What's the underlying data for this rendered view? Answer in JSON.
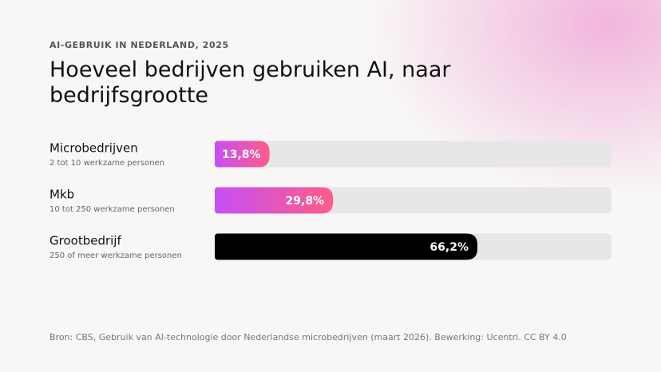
{
  "chart_data": {
    "type": "bar",
    "kicker": "AI-GEBRUIK IN NEDERLAND, 2025",
    "title": "Hoeveel bedrijven gebruiken AI, naar bedrijfsgrootte",
    "categories": [
      "Microbedrijven",
      "Mkb",
      "Grootbedrijf"
    ],
    "category_subtitles": [
      "2 tot 10 werkzame personen",
      "10 tot 250 werkzame personen",
      "250 of meer werkzame personen"
    ],
    "values": [
      13.8,
      29.8,
      66.2
    ],
    "value_labels": [
      "13,8%",
      "29,8%",
      "66,2%"
    ],
    "bar_colors": [
      [
        "#c64ff6",
        "#ff5c88"
      ],
      [
        "#c64ff6",
        "#ff5c88"
      ],
      [
        "#000000",
        "#000000"
      ]
    ],
    "track_color": "#e8e6e6",
    "xlim": [
      0,
      100
    ],
    "source": "Bron: CBS, Gebruik van AI-technologie door Nederlandse microbedrijven (maart 2026). Bewerking: Ucentri. CC BY 4.0"
  }
}
